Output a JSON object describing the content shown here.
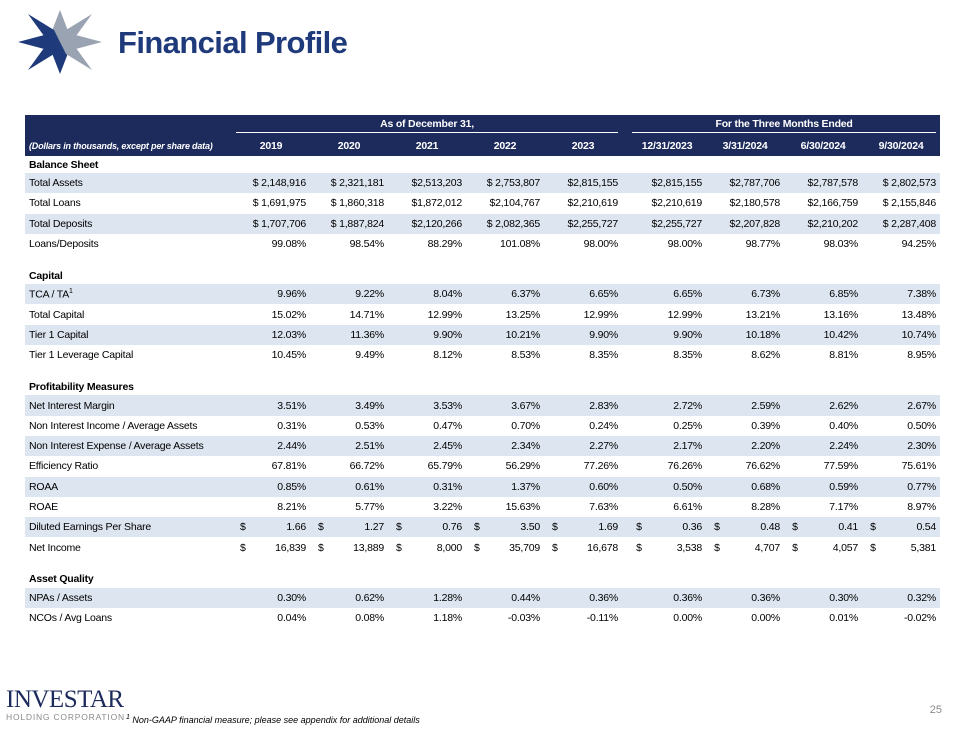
{
  "header": {
    "title": "Financial Profile"
  },
  "table": {
    "group_headers": [
      "As of December 31,",
      "For the Three Months Ended"
    ],
    "note": "(Dollars in thousands, except per share data)",
    "columns": [
      "2019",
      "2020",
      "2021",
      "2022",
      "2023",
      "12/31/2023",
      "3/31/2024",
      "6/30/2024",
      "9/30/2024"
    ],
    "sections": [
      {
        "title": "Balance Sheet",
        "rows": [
          {
            "label": "Total Assets",
            "cells": [
              "$ 2,148,916",
              "$ 2,321,181",
              "$2,513,203",
              "$ 2,753,807",
              "$2,815,155",
              "$2,815,155",
              "$2,787,706",
              "$2,787,578",
              "$ 2,802,573"
            ]
          },
          {
            "label": "Total Loans",
            "cells": [
              "$ 1,691,975",
              "$ 1,860,318",
              "$1,872,012",
              "$2,104,767",
              "$2,210,619",
              "$2,210,619",
              "$2,180,578",
              "$2,166,759",
              "$ 2,155,846"
            ]
          },
          {
            "label": "Total Deposits",
            "cells": [
              "$ 1,707,706",
              "$ 1,887,824",
              "$2,120,266",
              "$ 2,082,365",
              "$2,255,727",
              "$2,255,727",
              "$2,207,828",
              "$2,210,202",
              "$ 2,287,408"
            ]
          },
          {
            "label": "Loans/Deposits",
            "cells": [
              "99.08%",
              "98.54%",
              "88.29%",
              "101.08%",
              "98.00%",
              "98.00%",
              "98.77%",
              "98.03%",
              "94.25%"
            ]
          }
        ]
      },
      {
        "title": "Capital",
        "rows": [
          {
            "label": "TCA / TA",
            "note_ref": "1",
            "cells": [
              "9.96%",
              "9.22%",
              "8.04%",
              "6.37%",
              "6.65%",
              "6.65%",
              "6.73%",
              "6.85%",
              "7.38%"
            ]
          },
          {
            "label": "Total Capital",
            "cells": [
              "15.02%",
              "14.71%",
              "12.99%",
              "13.25%",
              "12.99%",
              "12.99%",
              "13.21%",
              "13.16%",
              "13.48%"
            ]
          },
          {
            "label": "Tier 1 Capital",
            "cells": [
              "12.03%",
              "11.36%",
              "9.90%",
              "10.21%",
              "9.90%",
              "9.90%",
              "10.18%",
              "10.42%",
              "10.74%"
            ]
          },
          {
            "label": "Tier 1 Leverage Capital",
            "cells": [
              "10.45%",
              "9.49%",
              "8.12%",
              "8.53%",
              "8.35%",
              "8.35%",
              "8.62%",
              "8.81%",
              "8.95%"
            ]
          }
        ]
      },
      {
        "title": "Profitability Measures",
        "rows": [
          {
            "label": "Net Interest Margin",
            "cells": [
              "3.51%",
              "3.49%",
              "3.53%",
              "3.67%",
              "2.83%",
              "2.72%",
              "2.59%",
              "2.62%",
              "2.67%"
            ]
          },
          {
            "label": "Non Interest Income / Average Assets",
            "cells": [
              "0.31%",
              "0.53%",
              "0.47%",
              "0.70%",
              "0.24%",
              "0.25%",
              "0.39%",
              "0.40%",
              "0.50%"
            ]
          },
          {
            "label": "Non Interest Expense / Average Assets",
            "cells": [
              "2.44%",
              "2.51%",
              "2.45%",
              "2.34%",
              "2.27%",
              "2.17%",
              "2.20%",
              "2.24%",
              "2.30%"
            ]
          },
          {
            "label": "Efficiency Ratio",
            "cells": [
              "67.81%",
              "66.72%",
              "65.79%",
              "56.29%",
              "77.26%",
              "76.26%",
              "76.62%",
              "77.59%",
              "75.61%"
            ]
          },
          {
            "label": "ROAA",
            "cells": [
              "0.85%",
              "0.61%",
              "0.31%",
              "1.37%",
              "0.60%",
              "0.50%",
              "0.68%",
              "0.59%",
              "0.77%"
            ]
          },
          {
            "label": "ROAE",
            "cells": [
              "8.21%",
              "5.77%",
              "3.22%",
              "15.63%",
              "7.63%",
              "6.61%",
              "8.28%",
              "7.17%",
              "8.97%"
            ]
          },
          {
            "label": "Diluted Earnings Per Share",
            "cells": [
              {
                "symbol": "$",
                "amount": "1.66"
              },
              {
                "symbol": "$",
                "amount": "1.27"
              },
              {
                "symbol": "$",
                "amount": "0.76"
              },
              {
                "symbol": "$",
                "amount": "3.50"
              },
              {
                "symbol": "$",
                "amount": "1.69"
              },
              {
                "symbol": "$",
                "amount": "0.36"
              },
              {
                "symbol": "$",
                "amount": "0.48"
              },
              {
                "symbol": "$",
                "amount": "0.41"
              },
              {
                "symbol": "$",
                "amount": "0.54"
              }
            ]
          },
          {
            "label": "Net Income",
            "cells": [
              {
                "symbol": "$",
                "amount": "16,839"
              },
              {
                "symbol": "$",
                "amount": "13,889"
              },
              {
                "symbol": "$",
                "amount": "8,000"
              },
              {
                "symbol": "$",
                "amount": "35,709"
              },
              {
                "symbol": "$",
                "amount": "16,678"
              },
              {
                "symbol": "$",
                "amount": "3,538"
              },
              {
                "symbol": "$",
                "amount": "4,707"
              },
              {
                "symbol": "$",
                "amount": "4,057"
              },
              {
                "symbol": "$",
                "amount": "5,381"
              }
            ]
          }
        ]
      },
      {
        "title": "Asset Quality",
        "rows": [
          {
            "label": "NPAs / Assets",
            "cells": [
              "0.30%",
              "0.62%",
              "1.28%",
              "0.44%",
              "0.36%",
              "0.36%",
              "0.36%",
              "0.30%",
              "0.32%"
            ]
          },
          {
            "label": "NCOs / Avg Loans",
            "cells": [
              "0.04%",
              "0.08%",
              "1.18%",
              "-0.03%",
              "-0.11%",
              "0.00%",
              "0.00%",
              "0.01%",
              "-0.02%"
            ]
          }
        ]
      }
    ]
  },
  "footnote": {
    "marker": "1",
    "text": "Non-GAAP financial measure; please see appendix for additional details"
  },
  "logo": {
    "name": "INVESTAR",
    "subtitle": "HOLDING CORPORATION"
  },
  "page_number": "25"
}
